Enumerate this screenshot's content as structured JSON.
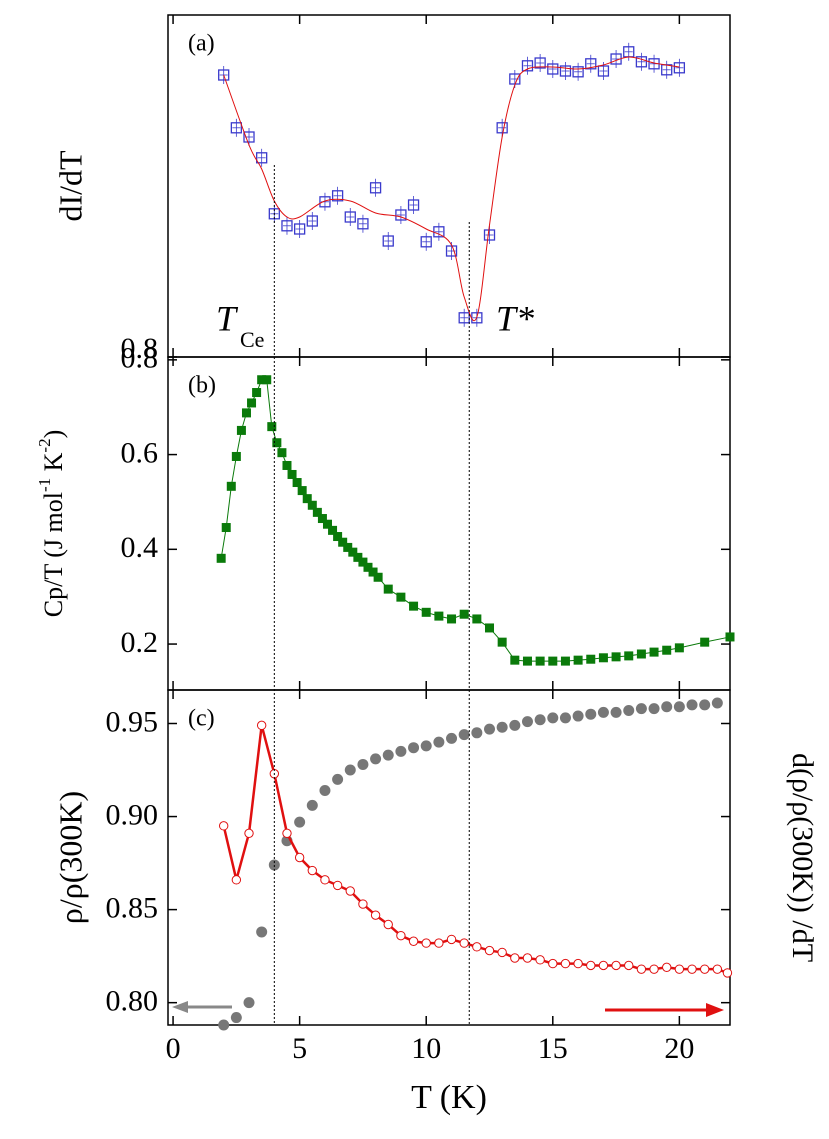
{
  "guides": {
    "x": [
      4,
      11.7
    ]
  },
  "chart_data": [
    {
      "type": "scatter",
      "label": "(a)",
      "ylabel": "dI/dT",
      "annotations": [
        "T",
        "Ce",
        "T*"
      ],
      "xlim": [
        -0.2,
        22
      ],
      "ylim": [
        0.8,
        1.655
      ],
      "yticks": [
        0.8
      ],
      "series": [
        {
          "color": "#3a3acc",
          "marker": "open-square",
          "x": [
            2,
            2.5,
            3,
            3.5,
            4,
            4.5,
            5,
            5.5,
            6,
            6.5,
            7,
            7.5,
            8,
            8.5,
            9,
            9.5,
            10,
            10.5,
            11,
            11.5,
            12,
            12.5,
            13,
            13.5,
            14,
            14.5,
            15,
            15.5,
            16,
            16.5,
            17,
            17.5,
            18,
            18.5,
            19,
            19.5,
            20
          ],
          "values": [
            1.505,
            1.373,
            1.35,
            1.298,
            1.158,
            1.128,
            1.12,
            1.14,
            1.188,
            1.203,
            1.15,
            1.133,
            1.223,
            1.09,
            1.155,
            1.18,
            1.088,
            1.113,
            1.065,
            0.898,
            0.898,
            1.105,
            1.373,
            1.495,
            1.528,
            1.535,
            1.52,
            1.515,
            1.513,
            1.533,
            1.515,
            1.545,
            1.563,
            1.538,
            1.533,
            1.518,
            1.523
          ]
        },
        {
          "color": "#e01010",
          "marker": "smooth-line",
          "x": [
            2,
            3,
            3.5,
            4,
            4.5,
            5,
            6,
            7,
            8,
            9,
            10,
            11,
            11.5,
            12,
            12.5,
            13,
            13.5,
            14,
            15,
            16,
            17,
            18,
            19,
            20
          ],
          "values": [
            1.505,
            1.33,
            1.27,
            1.19,
            1.15,
            1.15,
            1.19,
            1.19,
            1.16,
            1.15,
            1.12,
            1.08,
            0.95,
            0.9,
            1.13,
            1.35,
            1.48,
            1.52,
            1.525,
            1.52,
            1.53,
            1.55,
            1.535,
            1.525
          ]
        }
      ]
    },
    {
      "type": "scatter",
      "label": "(b)",
      "ylabel": [
        "Cp/T (J mol",
        "-1",
        " K",
        "-2",
        ")"
      ],
      "xlim": [
        -0.2,
        22
      ],
      "ylim": [
        0.103,
        0.806
      ],
      "yticks": [
        0.8,
        0.6,
        0.4,
        0.2
      ],
      "series": [
        {
          "color": "#0a7a0a",
          "marker": "square-line",
          "x": [
            1.9,
            2.1,
            2.3,
            2.5,
            2.7,
            2.9,
            3.1,
            3.3,
            3.5,
            3.7,
            3.9,
            4.1,
            4.3,
            4.5,
            4.7,
            4.9,
            5.1,
            5.3,
            5.5,
            5.7,
            5.9,
            6.1,
            6.3,
            6.5,
            6.7,
            6.9,
            7.1,
            7.3,
            7.5,
            7.7,
            7.9,
            8.1,
            8.5,
            9,
            9.5,
            10,
            10.5,
            11,
            11.5,
            12,
            12.5,
            13,
            13.5,
            14,
            14.5,
            15,
            15.5,
            16,
            16.5,
            17,
            17.5,
            18,
            18.5,
            19,
            19.5,
            20,
            21,
            22
          ],
          "values": [
            0.381,
            0.446,
            0.533,
            0.596,
            0.651,
            0.688,
            0.709,
            0.731,
            0.758,
            0.758,
            0.659,
            0.625,
            0.604,
            0.577,
            0.558,
            0.541,
            0.524,
            0.507,
            0.493,
            0.478,
            0.465,
            0.453,
            0.44,
            0.427,
            0.415,
            0.404,
            0.394,
            0.383,
            0.373,
            0.362,
            0.352,
            0.341,
            0.316,
            0.299,
            0.28,
            0.267,
            0.259,
            0.253,
            0.263,
            0.253,
            0.234,
            0.204,
            0.166,
            0.164,
            0.164,
            0.164,
            0.164,
            0.166,
            0.168,
            0.171,
            0.173,
            0.175,
            0.179,
            0.183,
            0.187,
            0.192,
            0.204,
            0.215
          ]
        }
      ]
    },
    {
      "type": "scatter",
      "label": "(c)",
      "ylabel": "ρ/ρ(300K)",
      "y2label": "d(ρ/ρ(300K)) /dT",
      "xlabel": "T (K)",
      "xlim": [
        -0.2,
        22
      ],
      "xticks": [
        0,
        5,
        10,
        15,
        20
      ],
      "ylim": [
        0.788,
        0.968
      ],
      "yticks": [
        0.95,
        {
          "value": 0.9,
          "label": "0.90"
        },
        0.85,
        {
          "value": 0.8,
          "label": "0.80"
        }
      ],
      "y2lim": [
        0.788,
        0.968
      ],
      "series": [
        {
          "color": "#777777",
          "marker": "circle",
          "x": [
            2,
            2.5,
            3,
            3.5,
            4,
            4.5,
            5,
            5.5,
            6,
            6.5,
            7,
            7.5,
            8,
            8.5,
            9,
            9.5,
            10,
            10.5,
            11,
            11.5,
            12,
            12.5,
            13,
            13.5,
            14,
            14.5,
            15,
            15.5,
            16,
            16.5,
            17,
            17.5,
            18,
            18.5,
            19,
            19.5,
            20,
            20.5,
            21,
            21.5
          ],
          "values": [
            0.788,
            0.792,
            0.8,
            0.838,
            0.874,
            0.887,
            0.897,
            0.906,
            0.914,
            0.92,
            0.925,
            0.928,
            0.931,
            0.933,
            0.935,
            0.937,
            0.938,
            0.94,
            0.942,
            0.944,
            0.945,
            0.947,
            0.948,
            0.949,
            0.951,
            0.952,
            0.953,
            0.953,
            0.954,
            0.955,
            0.956,
            0.956,
            0.957,
            0.958,
            0.958,
            0.959,
            0.959,
            0.96,
            0.96,
            0.961
          ]
        },
        {
          "color": "#e01010",
          "marker": "open-circle-line",
          "axis": "y2",
          "x": [
            2,
            2.5,
            3,
            3.5,
            4,
            4.5,
            5,
            5.5,
            6,
            6.5,
            7,
            7.5,
            8,
            8.5,
            9,
            9.5,
            10,
            10.5,
            11,
            11.5,
            12,
            12.5,
            13,
            13.5,
            14,
            14.5,
            15,
            15.5,
            16,
            16.5,
            17,
            17.5,
            18,
            18.5,
            19,
            19.5,
            20,
            20.5,
            21,
            21.5,
            21.9
          ],
          "values": [
            0.895,
            0.866,
            0.891,
            0.949,
            0.923,
            0.891,
            0.878,
            0.871,
            0.866,
            0.863,
            0.86,
            0.853,
            0.847,
            0.842,
            0.836,
            0.833,
            0.832,
            0.832,
            0.834,
            0.832,
            0.83,
            0.828,
            0.827,
            0.824,
            0.824,
            0.823,
            0.821,
            0.821,
            0.821,
            0.82,
            0.82,
            0.82,
            0.82,
            0.818,
            0.818,
            0.819,
            0.818,
            0.818,
            0.818,
            0.818,
            0.816
          ]
        }
      ]
    }
  ]
}
